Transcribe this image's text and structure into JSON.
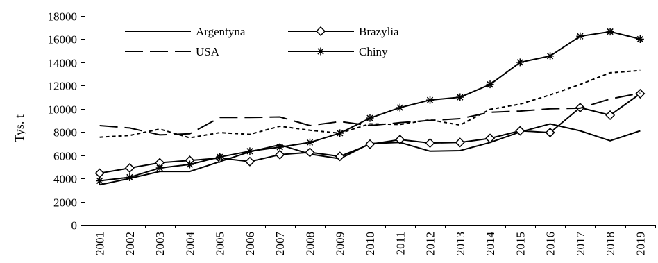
{
  "chart_data": {
    "type": "line",
    "title": "",
    "xlabel": "",
    "ylabel": "Tys. t",
    "x": [
      "2001",
      "2002",
      "2003",
      "2004",
      "2005",
      "2006",
      "2007",
      "2008",
      "2009",
      "2010",
      "2011",
      "2012",
      "2013",
      "2014",
      "2015",
      "2016",
      "2017",
      "2018",
      "2019"
    ],
    "yticks": [
      "0",
      "2000",
      "4000",
      "6000",
      "8000",
      "10000",
      "12000",
      "14000",
      "16000",
      "18000"
    ],
    "ylim": [
      0,
      18000
    ],
    "grid": false,
    "legend_placement": "top-left",
    "series": [
      {
        "name": "Argentyna",
        "style": "solid",
        "marker": "none",
        "values": [
          3450,
          4000,
          4600,
          4600,
          5450,
          6300,
          6900,
          6100,
          5700,
          7000,
          7100,
          6350,
          6400,
          7100,
          8000,
          8700,
          8100,
          7250,
          8100
        ]
      },
      {
        "name": "Brazylia",
        "style": "solid",
        "marker": "diamond",
        "values": [
          4450,
          4900,
          5350,
          5550,
          5750,
          5450,
          6050,
          6250,
          5900,
          6950,
          7350,
          7050,
          7100,
          7450,
          8100,
          7950,
          10100,
          9450,
          11300
        ]
      },
      {
        "name": "USA",
        "style": "long-dash",
        "marker": "none",
        "values": [
          8550,
          8350,
          7750,
          7850,
          9250,
          9250,
          9300,
          8550,
          8900,
          8550,
          8800,
          9000,
          9150,
          9700,
          9800,
          10000,
          10050,
          10850,
          11350
        ]
      },
      {
        "name": "Chiny",
        "style": "solid",
        "marker": "star",
        "values": [
          3800,
          4100,
          4900,
          5200,
          5850,
          6350,
          6700,
          7100,
          7900,
          9200,
          10100,
          10750,
          11000,
          12100,
          14000,
          14550,
          16250,
          16650,
          16000
        ]
      },
      {
        "name": "",
        "style": "short-dash",
        "marker": "none",
        "values": [
          7550,
          7700,
          8250,
          7500,
          7950,
          7800,
          8500,
          8150,
          7900,
          8700,
          8650,
          9050,
          8600,
          9950,
          10400,
          11200,
          12100,
          13100,
          13300
        ]
      }
    ]
  }
}
